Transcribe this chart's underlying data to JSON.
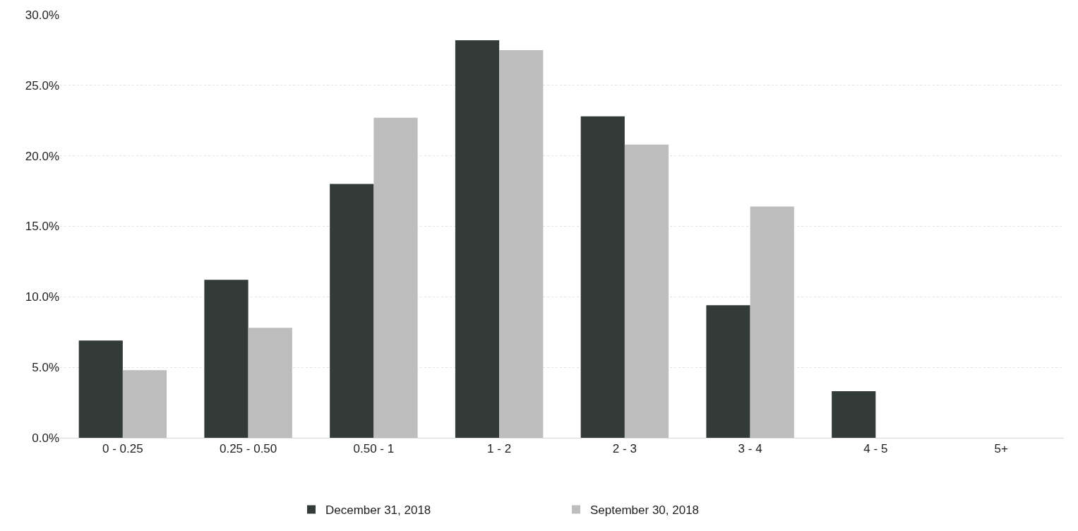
{
  "chart_data": {
    "type": "bar",
    "categories": [
      "0 - 0.25",
      "0.25 - 0.50",
      "0.50 - 1",
      "1 - 2",
      "2 - 3",
      "3 - 4",
      "4 - 5",
      "5+"
    ],
    "series": [
      {
        "name": "December 31, 2018",
        "color": "#333b38",
        "values": [
          6.9,
          11.2,
          18.0,
          28.2,
          22.8,
          9.4,
          3.3,
          null
        ]
      },
      {
        "name": "September 30, 2018",
        "color": "#bdbdbd",
        "values": [
          4.8,
          7.8,
          22.7,
          27.5,
          20.8,
          16.4,
          null,
          null
        ]
      }
    ],
    "ylim": [
      0,
      30
    ],
    "yticks": [
      {
        "value": 0,
        "label": "0.0%"
      },
      {
        "value": 5,
        "label": "5.0%"
      },
      {
        "value": 10,
        "label": "10.0%"
      },
      {
        "value": 15,
        "label": "15.0%"
      },
      {
        "value": 20,
        "label": "20.0%"
      },
      {
        "value": 25,
        "label": "25.0%"
      },
      {
        "value": 30,
        "label": "30.0%"
      }
    ],
    "grid": "y",
    "legend": "bottom"
  }
}
